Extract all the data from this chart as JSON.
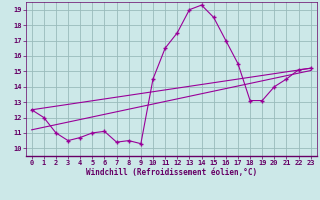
{
  "xlabel": "Windchill (Refroidissement éolien,°C)",
  "bg_color": "#cce8e8",
  "line_color": "#990099",
  "grid_color": "#99bbbb",
  "xlim": [
    -0.5,
    23.5
  ],
  "ylim": [
    9.5,
    19.5
  ],
  "xticks": [
    0,
    1,
    2,
    3,
    4,
    5,
    6,
    7,
    8,
    9,
    10,
    11,
    12,
    13,
    14,
    15,
    16,
    17,
    18,
    19,
    20,
    21,
    22,
    23
  ],
  "yticks": [
    10,
    11,
    12,
    13,
    14,
    15,
    16,
    17,
    18,
    19
  ],
  "hours": [
    0,
    1,
    2,
    3,
    4,
    5,
    6,
    7,
    8,
    9,
    10,
    11,
    12,
    13,
    14,
    15,
    16,
    17,
    18,
    19,
    20,
    21,
    22,
    23
  ],
  "main_line": [
    12.5,
    12.0,
    11.0,
    10.5,
    10.7,
    11.0,
    11.1,
    10.4,
    10.5,
    10.3,
    14.5,
    16.5,
    17.5,
    19.0,
    19.3,
    18.5,
    17.0,
    15.5,
    13.1,
    13.1,
    14.0,
    14.5,
    15.1,
    15.2
  ],
  "line2": [
    [
      0,
      12.5
    ],
    [
      23,
      15.2
    ]
  ],
  "line3": [
    [
      0,
      11.2
    ],
    [
      23,
      15.05
    ]
  ]
}
